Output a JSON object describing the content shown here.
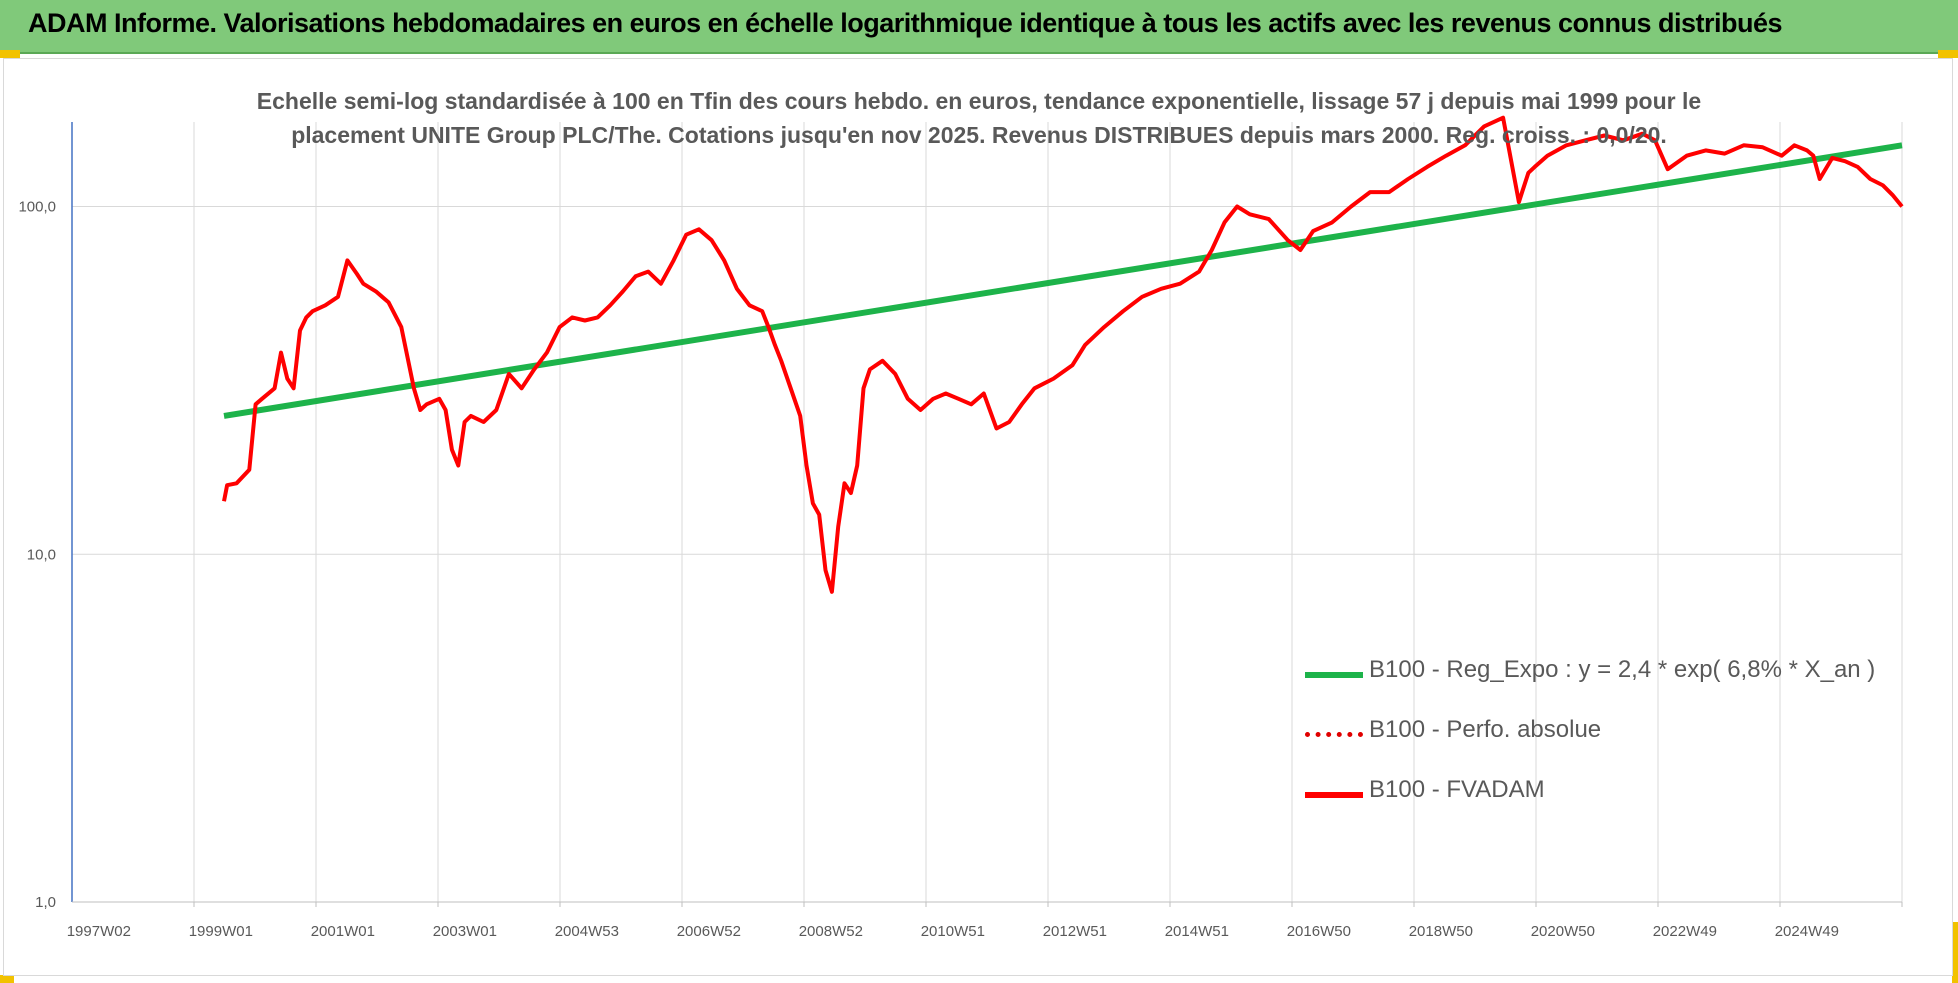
{
  "header": {
    "title": "ADAM Informe. Valorisations hebdomadaires en euros en échelle logarithmique identique à tous les actifs avec les revenus connus distribués"
  },
  "chart_data": {
    "type": "line",
    "subtitle_line1": "Echelle semi-log standardisée à 100 en Tfin des cours hebdo. en euros, tendance exponentielle, lissage 57 j depuis mai 1999 pour le",
    "subtitle_line2": "placement UNITE Group PLC/The. Cotations jusqu'en nov 2025. Revenus DISTRIBUES depuis mars 2000. Reg. croiss. : 0,0/20.",
    "y_scale": "log",
    "ylim": [
      1,
      175
    ],
    "y_ticks": [
      "1,0",
      "10,0",
      "100,0"
    ],
    "x_range": [
      1997.0,
      2025.9
    ],
    "x_ticks": [
      "1997W02",
      "1999W01",
      "2001W01",
      "2003W01",
      "2004W53",
      "2006W52",
      "2008W52",
      "2010W51",
      "2012W51",
      "2014W51",
      "2016W50",
      "2018W50",
      "2020W50",
      "2022W49",
      "2024W49"
    ],
    "grid": true,
    "legend_position": "bottom-right",
    "colors": {
      "trend": "#1db34a",
      "perf": "#e00000",
      "fvadam": "#ff0000",
      "banner": "#80c97a",
      "accent": "#f2c200"
    },
    "series": [
      {
        "name": "B100 - Reg_Expo : y = 2,4 * exp( 6,8% *  X_an )",
        "style": "solid-green",
        "x": [
          1999.4,
          2025.9
        ],
        "y": [
          25,
          150
        ]
      },
      {
        "name": "B100 - Perfo. absolue",
        "style": "dotted-red",
        "x": [],
        "y": []
      },
      {
        "name": "B100 - FVADAM",
        "style": "solid-red",
        "x": [
          1999.4,
          1999.45,
          1999.6,
          1999.8,
          1999.9,
          2000.0,
          2000.2,
          2000.3,
          2000.4,
          2000.5,
          2000.6,
          2000.7,
          2000.8,
          2001.0,
          2001.2,
          2001.35,
          2001.5,
          2001.6,
          2001.8,
          2002.0,
          2002.2,
          2002.4,
          2002.5,
          2002.6,
          2002.8,
          2002.9,
          2003.0,
          2003.1,
          2003.2,
          2003.3,
          2003.5,
          2003.7,
          2003.9,
          2004.1,
          2004.3,
          2004.5,
          2004.7,
          2004.9,
          2005.1,
          2005.3,
          2005.5,
          2005.7,
          2005.9,
          2006.1,
          2006.3,
          2006.5,
          2006.7,
          2006.9,
          2007.1,
          2007.3,
          2007.5,
          2007.7,
          2007.9,
          2008.0,
          2008.1,
          2008.2,
          2008.35,
          2008.5,
          2008.6,
          2008.7,
          2008.8,
          2008.9,
          2009.0,
          2009.1,
          2009.2,
          2009.3,
          2009.4,
          2009.5,
          2009.6,
          2009.8,
          2010.0,
          2010.2,
          2010.4,
          2010.6,
          2010.8,
          2011.0,
          2011.2,
          2011.4,
          2011.6,
          2011.8,
          2012.0,
          2012.2,
          2012.5,
          2012.8,
          2013.0,
          2013.3,
          2013.6,
          2013.9,
          2014.2,
          2014.5,
          2014.8,
          2015.0,
          2015.2,
          2015.4,
          2015.6,
          2015.9,
          2016.2,
          2016.4,
          2016.6,
          2016.9,
          2017.2,
          2017.5,
          2017.8,
          2018.1,
          2018.4,
          2018.7,
          2019.0,
          2019.3,
          2019.6,
          2019.85,
          2019.9,
          2020.0,
          2020.1,
          2020.3,
          2020.6,
          2020.9,
          2021.2,
          2021.5,
          2021.8,
          2022.0,
          2022.2,
          2022.5,
          2022.8,
          2023.1,
          2023.4,
          2023.7,
          2024.0,
          2024.2,
          2024.4,
          2024.5,
          2024.6,
          2024.8,
          2025.0,
          2025.2,
          2025.4,
          2025.6,
          2025.75,
          2025.9
        ],
        "y": [
          14.2,
          15.8,
          16.0,
          17.5,
          27,
          28,
          30,
          38,
          32,
          30,
          44,
          48,
          50,
          52,
          55,
          70,
          64,
          60,
          57,
          53,
          45,
          30,
          26,
          27,
          28,
          26,
          20,
          18,
          24,
          25,
          24,
          26,
          33,
          30,
          34,
          38,
          45,
          48,
          47,
          48,
          52,
          57,
          63,
          65,
          60,
          70,
          83,
          86,
          80,
          70,
          58,
          52,
          50,
          45,
          40,
          36,
          30,
          25,
          18,
          14,
          13,
          9,
          7.8,
          12,
          16,
          15,
          18,
          30,
          34,
          36,
          33,
          28,
          26,
          28,
          29,
          28,
          27,
          29,
          23,
          24,
          27,
          30,
          32,
          35,
          40,
          45,
          50,
          55,
          58,
          60,
          65,
          75,
          90,
          100,
          95,
          92,
          80,
          75,
          85,
          90,
          100,
          110,
          110,
          120,
          130,
          140,
          150,
          170,
          180,
          103,
          110,
          125,
          130,
          140,
          150,
          155,
          160,
          155,
          162,
          155,
          128,
          140,
          145,
          142,
          150,
          148,
          140,
          150,
          145,
          140,
          120,
          138,
          135,
          130,
          120,
          115,
          108,
          100
        ]
      }
    ]
  }
}
